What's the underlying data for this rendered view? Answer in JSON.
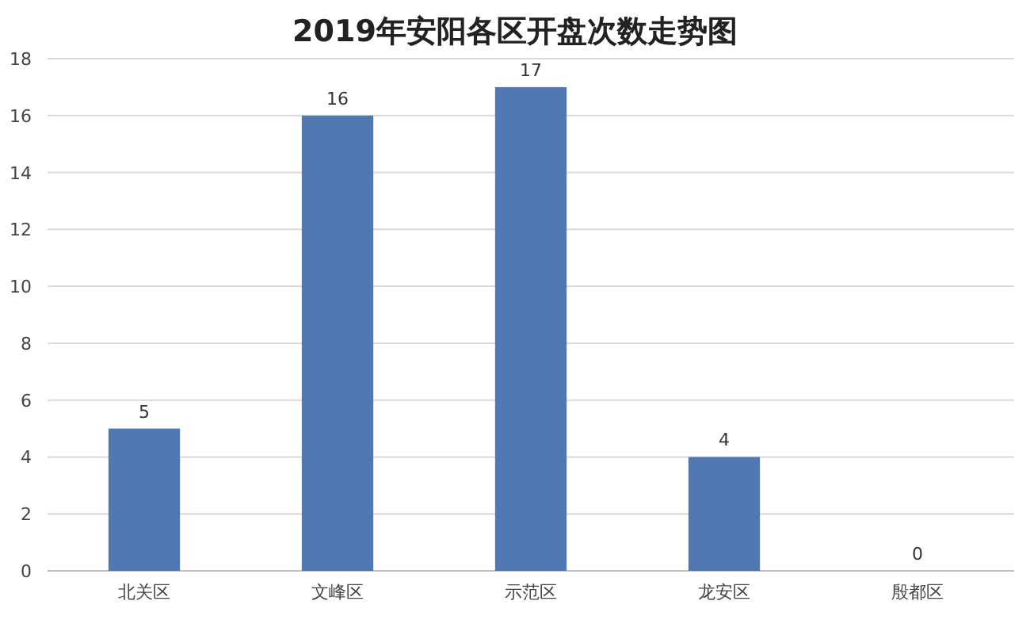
{
  "chart_data": {
    "type": "bar",
    "title": "2019年安阳各区开盘次数走势图",
    "categories": [
      "北关区",
      "文峰区",
      "示范区",
      "龙安区",
      "殷都区"
    ],
    "values": [
      5,
      16,
      17,
      4,
      0
    ],
    "color": "#5079b4",
    "ylim": [
      0,
      18
    ],
    "yticks": [
      0,
      2,
      4,
      6,
      8,
      10,
      12,
      14,
      16,
      18
    ],
    "grid": "y",
    "data_labels": true
  }
}
